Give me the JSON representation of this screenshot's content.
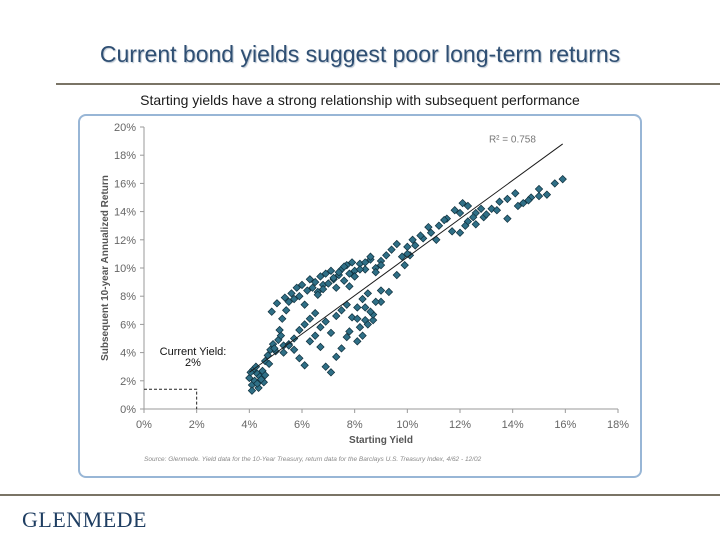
{
  "slide": {
    "title": "Current bond yields suggest poor long-term returns",
    "subtitle": "Starting yields have a strong relationship with subsequent performance",
    "source_note": "Source: Glenmede. Yield data for the 10-Year Treasury, return data for the Barclays U.S. Treasury Index, 4/62 - 12/02",
    "logo_text": "GLENMEDE"
  },
  "colors": {
    "title": "#2f4f73",
    "marker_fill": "#2f6f86",
    "marker_stroke": "#0f2f3c",
    "frame": "#98b6d6",
    "rule": "#7a7466"
  },
  "chart_data": {
    "type": "scatter",
    "xlabel": "Starting Yield",
    "ylabel": "Subsequent 10-year Annualized Return",
    "xlim": [
      0,
      18
    ],
    "ylim": [
      0,
      20
    ],
    "x_ticks": [
      "0%",
      "2%",
      "4%",
      "6%",
      "8%",
      "10%",
      "12%",
      "14%",
      "16%",
      "18%"
    ],
    "y_ticks": [
      "0%",
      "2%",
      "4%",
      "6%",
      "8%",
      "10%",
      "12%",
      "14%",
      "16%",
      "18%",
      "20%"
    ],
    "r_squared_label": "R² = 0.758",
    "trendline": {
      "x": [
        4.0,
        15.9
      ],
      "y": [
        2.6,
        18.8
      ]
    },
    "annotation": {
      "label": "Current Yield:",
      "value": "2%",
      "x": 2.0,
      "y": 1.4
    },
    "series": [
      {
        "x": [
          4.0,
          4.1,
          4.15,
          4.2,
          4.3,
          4.35,
          4.4,
          4.5,
          4.55,
          4.6,
          4.1,
          4.25,
          4.45,
          4.05,
          4.3,
          4.6,
          4.7,
          4.8,
          4.9,
          5.0,
          5.1,
          5.2,
          5.3,
          4.75,
          4.95,
          5.15,
          5.25,
          4.85,
          5.05,
          5.35,
          5.4,
          5.5,
          5.6,
          5.7,
          5.8,
          5.9,
          6.0,
          6.1,
          6.2,
          6.3,
          6.4,
          6.5,
          6.6,
          6.7,
          6.8,
          6.9,
          7.0,
          7.1,
          7.2,
          7.3,
          7.4,
          7.5,
          7.6,
          7.7,
          7.8,
          7.9,
          8.0,
          5.5,
          5.7,
          5.9,
          6.1,
          6.3,
          6.5,
          6.7,
          6.9,
          7.1,
          7.3,
          7.5,
          7.7,
          5.3,
          5.5,
          5.7,
          5.9,
          6.1,
          6.3,
          6.5,
          6.7,
          6.9,
          7.1,
          7.3,
          7.5,
          7.7,
          7.9,
          8.1,
          8.3,
          8.5,
          8.7,
          6.6,
          6.8,
          7.0,
          7.2,
          7.4,
          7.6,
          7.8,
          8.0,
          8.2,
          8.4,
          8.6,
          8.8,
          9.0,
          8.0,
          8.2,
          8.4,
          8.6,
          8.8,
          9.0,
          9.2,
          9.4,
          9.6,
          9.8,
          10.0,
          10.2,
          7.8,
          8.1,
          8.4,
          8.7,
          9.0,
          9.3,
          9.6,
          9.9,
          10.1,
          10.0,
          10.3,
          10.6,
          10.9,
          11.2,
          11.5,
          11.8,
          12.1,
          10.5,
          10.8,
          11.1,
          11.4,
          11.7,
          12.0,
          12.3,
          12.6,
          12.0,
          12.3,
          12.6,
          12.9,
          13.2,
          13.5,
          13.8,
          14.1,
          14.4,
          14.7,
          15.0,
          15.3,
          15.6,
          15.9,
          13.0,
          13.4,
          13.8,
          14.2,
          14.6,
          15.0,
          12.2,
          12.5,
          12.8,
          8.2,
          8.4,
          8.6,
          8.8,
          9.0,
          8.1,
          8.3,
          8.5
        ],
        "y": [
          2.2,
          1.7,
          2.8,
          2.0,
          2.5,
          1.5,
          2.3,
          2.7,
          1.9,
          2.4,
          1.3,
          3.0,
          2.1,
          2.6,
          1.8,
          3.4,
          3.8,
          4.2,
          4.6,
          4.1,
          4.9,
          5.2,
          4.5,
          3.2,
          4.3,
          5.6,
          6.4,
          6.9,
          7.5,
          7.9,
          7.0,
          7.6,
          8.2,
          7.8,
          8.6,
          8.0,
          8.8,
          7.4,
          8.4,
          9.2,
          8.6,
          9.0,
          8.3,
          9.4,
          8.8,
          9.6,
          8.9,
          9.8,
          9.2,
          8.6,
          9.5,
          9.9,
          9.1,
          10.2,
          9.6,
          10.4,
          9.8,
          4.6,
          4.2,
          3.6,
          3.1,
          4.8,
          5.2,
          4.4,
          3.0,
          2.6,
          3.7,
          4.3,
          5.1,
          4.0,
          4.5,
          5.0,
          5.6,
          6.0,
          6.4,
          6.8,
          5.8,
          6.2,
          5.4,
          6.6,
          7.0,
          7.4,
          6.5,
          7.2,
          7.8,
          8.2,
          6.3,
          8.1,
          8.5,
          8.9,
          9.3,
          9.7,
          10.1,
          8.7,
          9.4,
          10.3,
          9.9,
          10.6,
          10.0,
          10.5,
          9.4,
          9.9,
          10.4,
          10.8,
          9.7,
          10.2,
          10.9,
          11.3,
          11.7,
          10.8,
          11.5,
          12.0,
          5.5,
          6.4,
          7.2,
          6.7,
          7.6,
          8.3,
          9.5,
          10.2,
          10.9,
          11.0,
          11.6,
          12.1,
          12.5,
          13.0,
          13.5,
          14.1,
          14.6,
          12.3,
          12.9,
          12.0,
          13.4,
          12.6,
          13.9,
          14.4,
          13.1,
          12.5,
          13.3,
          13.9,
          13.6,
          14.2,
          14.7,
          14.9,
          15.3,
          14.6,
          15.0,
          15.6,
          15.2,
          16.0,
          16.3,
          13.8,
          14.1,
          13.5,
          14.4,
          14.8,
          15.1,
          13.0,
          13.6,
          14.2,
          5.8,
          6.3,
          6.9,
          7.6,
          8.4,
          4.8,
          5.2,
          6.0
        ]
      }
    ]
  }
}
